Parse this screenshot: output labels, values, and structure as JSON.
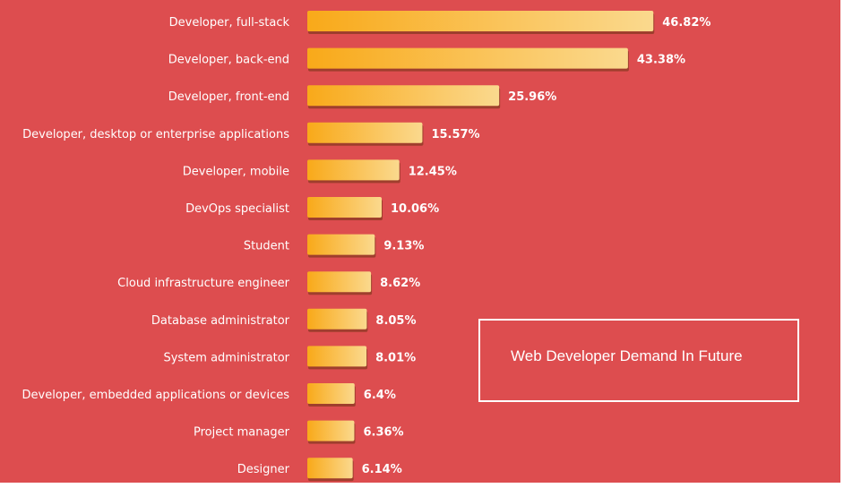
{
  "chart_data": {
    "type": "bar",
    "orientation": "horizontal",
    "title": "Web Developer Demand In Future",
    "categories": [
      "Developer, full-stack",
      "Developer, back-end",
      "Developer, front-end",
      "Developer, desktop or enterprise applications",
      "Developer, mobile",
      "DevOps specialist",
      "Student",
      "Cloud infrastructure engineer",
      "Database administrator",
      "System administrator",
      "Developer, embedded applications or devices",
      "Project manager",
      "Designer"
    ],
    "values": [
      46.82,
      43.38,
      25.96,
      15.57,
      12.45,
      10.06,
      9.13,
      8.62,
      8.05,
      8.01,
      6.4,
      6.36,
      6.14
    ],
    "value_labels": [
      "46.82%",
      "43.38%",
      "25.96%",
      "15.57%",
      "12.45%",
      "10.06%",
      "9.13%",
      "8.62%",
      "8.05%",
      "8.01%",
      "6.4%",
      "6.36%",
      "6.14%"
    ],
    "grid": false,
    "legend": "none"
  },
  "colors": {
    "background": "#dd4d4f",
    "bar_start": "#f9a919",
    "bar_end": "#fad98e",
    "bar_shadow": "#8a3a22",
    "text": "#ffffff"
  }
}
